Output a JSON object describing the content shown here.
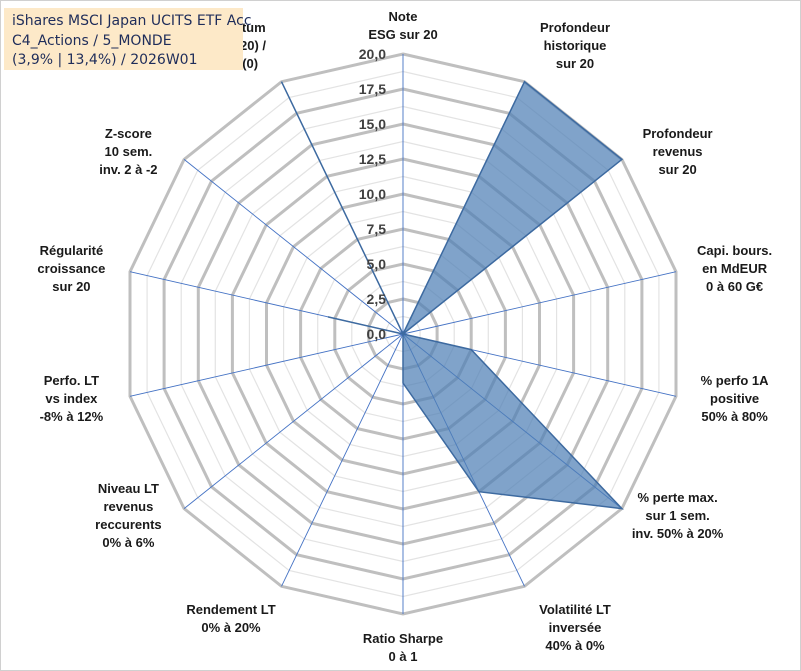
{
  "title_lines": [
    "iShares MSCI Japan UCITS ETF Acc",
    "C4_Actions / 5_MONDE",
    "(3,9% | 13,4%) / 2026W01"
  ],
  "colors": {
    "fill": "#4f7fb5",
    "stroke": "#3d6aa0",
    "grid": "#c8c8c8",
    "spoke": "#4472c4"
  },
  "chart_data": {
    "type": "radar",
    "title": "iShares MSCI Japan UCITS ETF Acc",
    "rlim": [
      0,
      20
    ],
    "tick_labels": [
      "0,0",
      "2,5",
      "5,0",
      "7,5",
      "10,0",
      "12,5",
      "15,0",
      "17,5",
      "20,0"
    ],
    "grid": true,
    "categories": [
      [
        "Note",
        "ESG sur 20"
      ],
      [
        "Profondeur",
        "historique",
        "sur 20"
      ],
      [
        "Profondeur",
        "revenus",
        "sur 20"
      ],
      [
        "Capi. bours.",
        "en MdEUR",
        "0 à 60 G€"
      ],
      [
        "% perfo 1A",
        "positive",
        "50% à 80%"
      ],
      [
        "% perte max.",
        "sur 1 sem.",
        "inv. 50% à 20%"
      ],
      [
        "Volatilité LT",
        "inversée",
        "40% à 0%"
      ],
      [
        "Ratio Sharpe",
        "0 à 1"
      ],
      [
        "Rendement LT",
        "0% à 20%"
      ],
      [
        "Niveau LT",
        "revenus",
        "reccurents",
        "0% à 6%"
      ],
      [
        "Perfo. LT",
        "vs index",
        "-8% à 12%"
      ],
      [
        "Régularité",
        "croissance",
        "sur 20"
      ],
      [
        "Z-score",
        "10 sem.",
        "inv. 2 à -2"
      ],
      [
        "Momentum",
        "Achat (20) /",
        "Vente (0)"
      ]
    ],
    "series": [
      {
        "values": [
          0,
          20,
          20,
          0,
          5,
          20,
          12.5,
          3.5,
          0,
          0,
          0,
          5.5,
          0,
          20
        ]
      }
    ]
  }
}
